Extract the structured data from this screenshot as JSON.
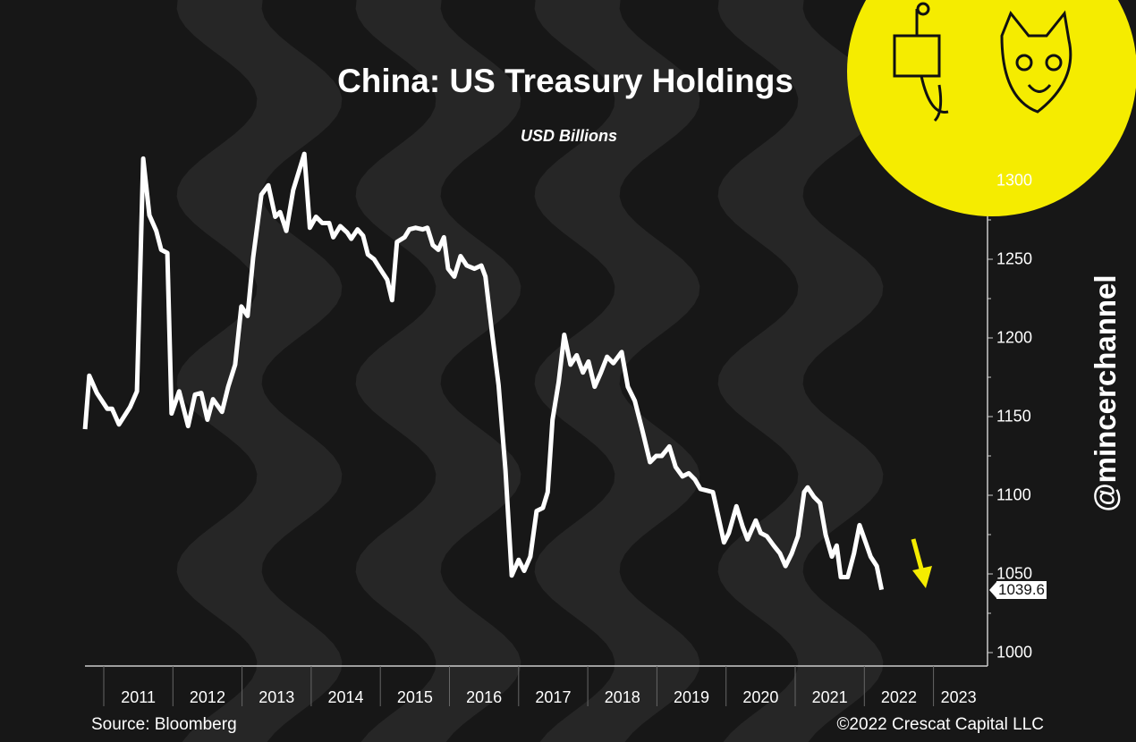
{
  "chart_data": {
    "type": "line",
    "title": "China: US Treasury Holdings",
    "subtitle": "USD Billions",
    "xlabel": "",
    "ylabel": "USD Billions",
    "ylim": [
      1000,
      1300
    ],
    "yticks": [
      "1300",
      "1250",
      "1200",
      "1150",
      "1100",
      "1050",
      "1000"
    ],
    "xticks": [
      "2011",
      "2012",
      "2013",
      "2014",
      "2015",
      "2016",
      "2017",
      "2018",
      "2019",
      "2020",
      "2021",
      "2022",
      "2023"
    ],
    "grid": false,
    "last_value_label": "1039.6",
    "series": [
      {
        "name": "China US Treasury Holdings",
        "color": "#ffffff",
        "points": [
          [
            2010.73,
            1142
          ],
          [
            2010.79,
            1176
          ],
          [
            2010.9,
            1165
          ],
          [
            2011.05,
            1155
          ],
          [
            2011.12,
            1155
          ],
          [
            2011.22,
            1145
          ],
          [
            2011.38,
            1156
          ],
          [
            2011.48,
            1166
          ],
          [
            2011.57,
            1314
          ],
          [
            2011.66,
            1278
          ],
          [
            2011.76,
            1268
          ],
          [
            2011.83,
            1256
          ],
          [
            2011.92,
            1254
          ],
          [
            2011.98,
            1152
          ],
          [
            2012.09,
            1166
          ],
          [
            2012.22,
            1144
          ],
          [
            2012.32,
            1164
          ],
          [
            2012.41,
            1165
          ],
          [
            2012.5,
            1148
          ],
          [
            2012.58,
            1161
          ],
          [
            2012.71,
            1153
          ],
          [
            2012.8,
            1169
          ],
          [
            2012.9,
            1183
          ],
          [
            2012.99,
            1220
          ],
          [
            2013.08,
            1214
          ],
          [
            2013.16,
            1251
          ],
          [
            2013.28,
            1291
          ],
          [
            2013.38,
            1297
          ],
          [
            2013.48,
            1277
          ],
          [
            2013.55,
            1280
          ],
          [
            2013.64,
            1268
          ],
          [
            2013.74,
            1294
          ],
          [
            2013.9,
            1317
          ],
          [
            2013.98,
            1270
          ],
          [
            2014.07,
            1277
          ],
          [
            2014.16,
            1273
          ],
          [
            2014.26,
            1273
          ],
          [
            2014.32,
            1264
          ],
          [
            2014.42,
            1271
          ],
          [
            2014.52,
            1267
          ],
          [
            2014.58,
            1263
          ],
          [
            2014.67,
            1269
          ],
          [
            2014.75,
            1265
          ],
          [
            2014.82,
            1253
          ],
          [
            2014.91,
            1250
          ],
          [
            2015.01,
            1243
          ],
          [
            2015.1,
            1237
          ],
          [
            2015.17,
            1224
          ],
          [
            2015.24,
            1261
          ],
          [
            2015.35,
            1264
          ],
          [
            2015.42,
            1269
          ],
          [
            2015.51,
            1270
          ],
          [
            2015.61,
            1269
          ],
          [
            2015.68,
            1270
          ],
          [
            2015.76,
            1259
          ],
          [
            2015.84,
            1256
          ],
          [
            2015.92,
            1264
          ],
          [
            2015.98,
            1244
          ],
          [
            2016.07,
            1239
          ],
          [
            2016.16,
            1252
          ],
          [
            2016.25,
            1246
          ],
          [
            2016.36,
            1244
          ],
          [
            2016.46,
            1246
          ],
          [
            2016.52,
            1239
          ],
          [
            2016.61,
            1205
          ],
          [
            2016.71,
            1170
          ],
          [
            2016.81,
            1116
          ],
          [
            2016.9,
            1049
          ],
          [
            2017.0,
            1059
          ],
          [
            2017.08,
            1052
          ],
          [
            2017.17,
            1061
          ],
          [
            2017.26,
            1090
          ],
          [
            2017.35,
            1092
          ],
          [
            2017.42,
            1102
          ],
          [
            2017.49,
            1148
          ],
          [
            2017.58,
            1172
          ],
          [
            2017.66,
            1202
          ],
          [
            2017.75,
            1183
          ],
          [
            2017.84,
            1189
          ],
          [
            2017.93,
            1178
          ],
          [
            2018.01,
            1185
          ],
          [
            2018.1,
            1169
          ],
          [
            2018.19,
            1178
          ],
          [
            2018.28,
            1188
          ],
          [
            2018.37,
            1184
          ],
          [
            2018.49,
            1191
          ],
          [
            2018.58,
            1169
          ],
          [
            2018.68,
            1160
          ],
          [
            2018.79,
            1141
          ],
          [
            2018.9,
            1121
          ],
          [
            2018.99,
            1125
          ],
          [
            2019.07,
            1125
          ],
          [
            2019.18,
            1131
          ],
          [
            2019.27,
            1118
          ],
          [
            2019.37,
            1112
          ],
          [
            2019.46,
            1114
          ],
          [
            2019.55,
            1110
          ],
          [
            2019.63,
            1104
          ],
          [
            2019.72,
            1103
          ],
          [
            2019.81,
            1102
          ],
          [
            2019.89,
            1086
          ],
          [
            2019.97,
            1070
          ],
          [
            2020.04,
            1076
          ],
          [
            2020.15,
            1093
          ],
          [
            2020.24,
            1080
          ],
          [
            2020.31,
            1072
          ],
          [
            2020.43,
            1084
          ],
          [
            2020.5,
            1076
          ],
          [
            2020.59,
            1074
          ],
          [
            2020.69,
            1068
          ],
          [
            2020.78,
            1063
          ],
          [
            2020.86,
            1055
          ],
          [
            2020.95,
            1063
          ],
          [
            2021.04,
            1074
          ],
          [
            2021.13,
            1102
          ],
          [
            2021.18,
            1105
          ],
          [
            2021.27,
            1099
          ],
          [
            2021.36,
            1095
          ],
          [
            2021.44,
            1075
          ],
          [
            2021.53,
            1061
          ],
          [
            2021.6,
            1068
          ],
          [
            2021.66,
            1048
          ],
          [
            2021.76,
            1048
          ],
          [
            2021.85,
            1063
          ],
          [
            2021.93,
            1081
          ],
          [
            2022.02,
            1070
          ],
          [
            2022.09,
            1061
          ],
          [
            2022.18,
            1055
          ],
          [
            2022.25,
            1040
          ]
        ]
      }
    ]
  },
  "footer": {
    "source": "Source: Bloomberg",
    "copyright": "©2022 Crescat Capital LLC"
  },
  "watermark": "@mincerchannel",
  "colors": {
    "background": "#171717",
    "stripe": "#262626",
    "accent": "#f5ec00"
  },
  "icons": {
    "logo": "meat-grinder-cat-logo",
    "arrow": "down-arrow-icon"
  }
}
